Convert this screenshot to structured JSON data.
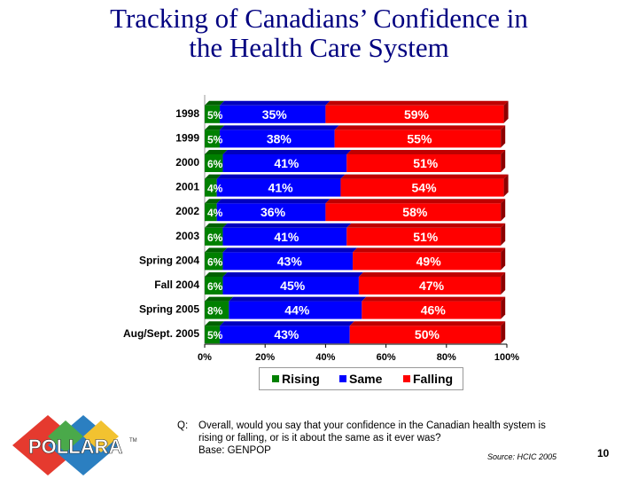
{
  "title_line1": "Tracking of Canadians’ Confidence in",
  "title_line2": "the Health Care System",
  "chart_data": {
    "type": "bar",
    "orientation": "horizontal",
    "stacked": true,
    "categories": [
      "1998",
      "1999",
      "2000",
      "2001",
      "2002",
      "2003",
      "Spring 2004",
      "Fall 2004",
      "Spring 2005",
      "Aug/Sept. 2005"
    ],
    "series": [
      {
        "name": "Rising",
        "color": "#008000",
        "values": [
          5,
          5,
          6,
          4,
          4,
          6,
          6,
          6,
          8,
          5
        ]
      },
      {
        "name": "Same",
        "color": "#0000ff",
        "values": [
          35,
          38,
          41,
          41,
          36,
          41,
          43,
          45,
          44,
          43
        ]
      },
      {
        "name": "Falling",
        "color": "#ff0000",
        "values": [
          59,
          55,
          51,
          54,
          58,
          51,
          49,
          47,
          46,
          50
        ]
      }
    ],
    "xlim": [
      0,
      100
    ],
    "xticks": [
      "0%",
      "20%",
      "40%",
      "60%",
      "80%",
      "100%"
    ],
    "legend_position": "bottom"
  },
  "legend": {
    "rising": "Rising",
    "same": "Same",
    "falling": "Falling"
  },
  "question": {
    "label": "Q:",
    "line1": "Overall, would you say that your confidence in the Canadian health system is",
    "line2": "rising or falling, or is it about the same as it ever was?",
    "line3": "Base: GENPOP"
  },
  "source": "Source: HCIC 2005",
  "page_number": "10",
  "logo_text": "POLLARA",
  "logo_tm": "TM"
}
